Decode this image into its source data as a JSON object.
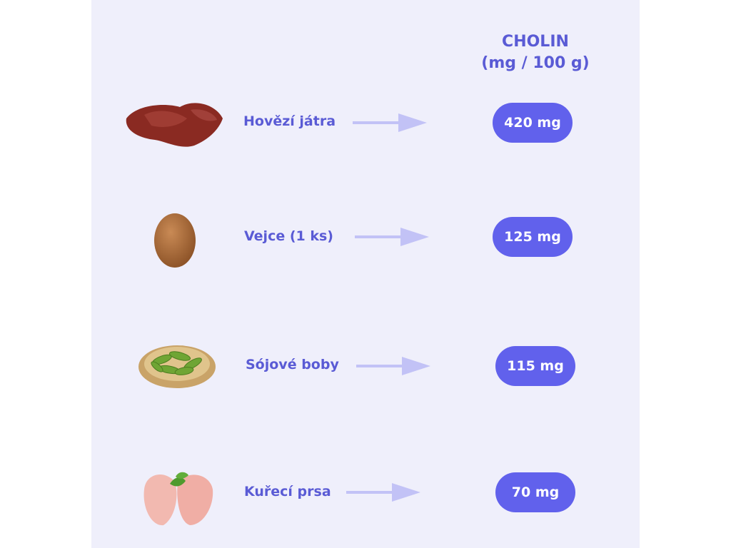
{
  "header": {
    "line1": "CHOLIN",
    "line2": "(mg / 100 g)"
  },
  "colors": {
    "background": "#efeffb",
    "text": "#5a5bd5",
    "pill": "#6161ec",
    "arrow": "#c2c2f6"
  },
  "items": [
    {
      "label": "Hovězí játra",
      "value": "420 mg",
      "icon": "beef-liver-image"
    },
    {
      "label": "Vejce (1 ks)",
      "value": "125 mg",
      "icon": "egg-image"
    },
    {
      "label": "Sójové boby",
      "value": "115 mg",
      "icon": "soybeans-image"
    },
    {
      "label": "Kuřecí prsa",
      "value": "70 mg",
      "icon": "chicken-breast-image"
    }
  ]
}
